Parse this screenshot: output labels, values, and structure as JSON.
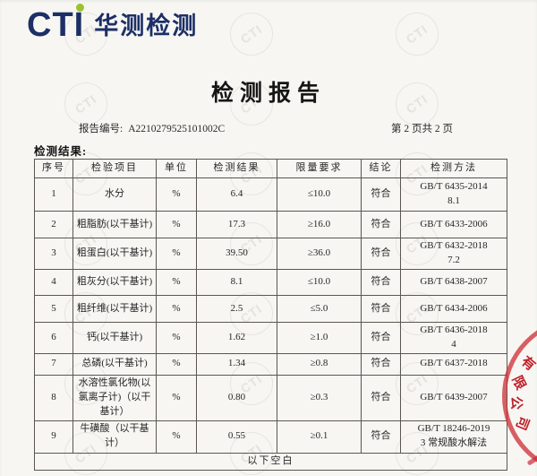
{
  "header": {
    "logo_text": "CTI",
    "logo_cn": "华测检测",
    "logo_color": "#1d2f66",
    "logo_dot_color": "#9cc22e"
  },
  "title": "检测报告",
  "meta": {
    "report_no_label": "报告编号:",
    "report_no": "A2210279525101002C",
    "page_info": "第 2 页共 2 页"
  },
  "section_label": "检测结果:",
  "table": {
    "columns": [
      "序号",
      "检验项目",
      "单位",
      "检测结果",
      "限量要求",
      "结论",
      "检测方法"
    ],
    "rows": [
      {
        "no": "1",
        "item": "水分",
        "unit": "%",
        "result": "6.4",
        "limit": "≤10.0",
        "conclusion": "符合",
        "method": "GB/T 6435-2014\n8.1"
      },
      {
        "no": "2",
        "item": "粗脂肪(以干基计)",
        "unit": "%",
        "result": "17.3",
        "limit": "≥16.0",
        "conclusion": "符合",
        "method": "GB/T 6433-2006"
      },
      {
        "no": "3",
        "item": "粗蛋白(以干基计)",
        "unit": "%",
        "result": "39.50",
        "limit": "≥36.0",
        "conclusion": "符合",
        "method": "GB/T 6432-2018\n7.2"
      },
      {
        "no": "4",
        "item": "粗灰分(以干基计)",
        "unit": "%",
        "result": "8.1",
        "limit": "≤10.0",
        "conclusion": "符合",
        "method": "GB/T 6438-2007"
      },
      {
        "no": "5",
        "item": "粗纤维(以干基计)",
        "unit": "%",
        "result": "2.5",
        "limit": "≤5.0",
        "conclusion": "符合",
        "method": "GB/T 6434-2006"
      },
      {
        "no": "6",
        "item": "钙(以干基计)",
        "unit": "%",
        "result": "1.62",
        "limit": "≥1.0",
        "conclusion": "符合",
        "method": "GB/T 6436-2018\n4"
      },
      {
        "no": "7",
        "item": "总磷(以干基计)",
        "unit": "%",
        "result": "1.34",
        "limit": "≥0.8",
        "conclusion": "符合",
        "method": "GB/T 6437-2018"
      },
      {
        "no": "8",
        "item": "水溶性氯化物(以氯离子计)（以干基计）",
        "unit": "%",
        "result": "0.80",
        "limit": "≥0.3",
        "conclusion": "符合",
        "method": "GB/T 6439-2007"
      },
      {
        "no": "9",
        "item": "牛磺酸（以干基计）",
        "unit": "%",
        "result": "0.55",
        "limit": "≥0.1",
        "conclusion": "符合",
        "method": "GB/T 18246-2019\n3  常规酸水解法"
      }
    ],
    "footer_note": "以下空白"
  },
  "watermark": {
    "text": "CTI"
  },
  "stamp": {
    "text": "有限公司",
    "color": "#be222a"
  }
}
